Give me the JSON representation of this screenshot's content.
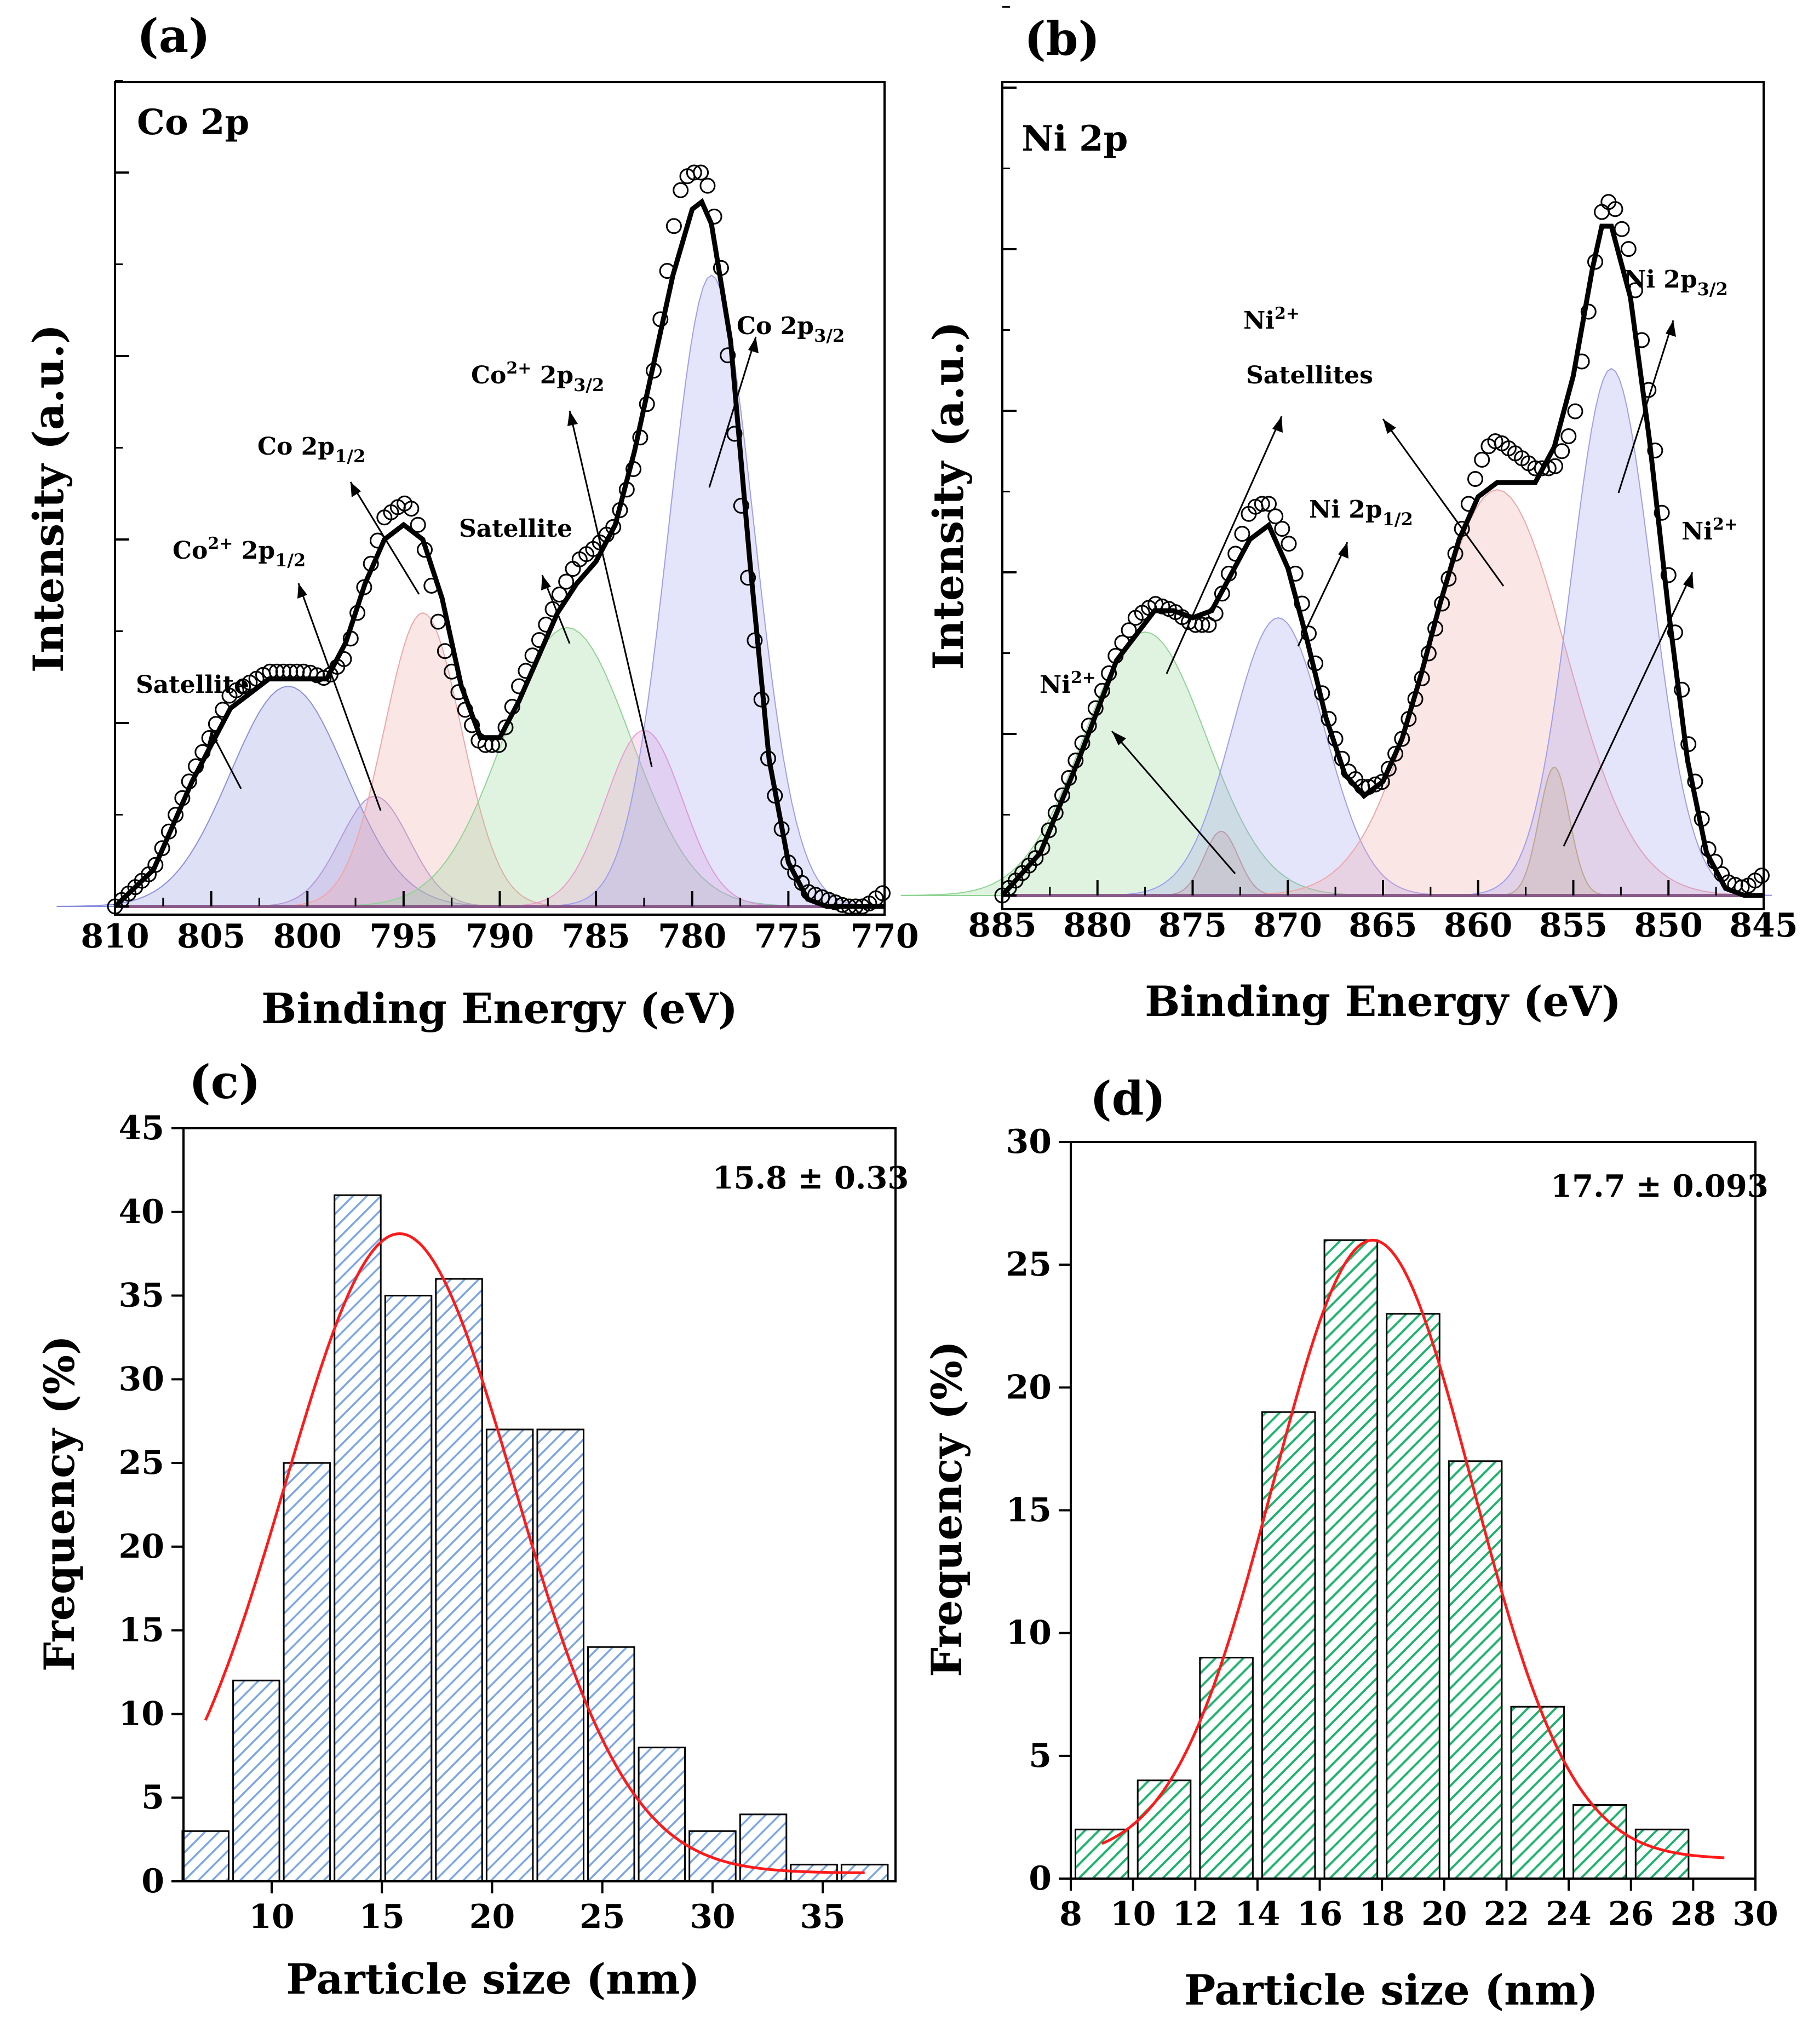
{
  "chart_data": [
    {
      "panel": "(a)",
      "type": "line",
      "title": "Co 2p",
      "xlabel": "Binding Energy (eV)",
      "ylabel": "Intensity (a.u.)",
      "xlim": [
        810,
        770
      ],
      "ylim": [
        0,
        1
      ],
      "xticks": [
        "810",
        "805",
        "800",
        "795",
        "790",
        "785",
        "780",
        "775",
        "770"
      ],
      "series": [
        {
          "name": "Measured",
          "x": [
            810,
            808,
            806,
            804,
            802,
            801,
            800,
            799,
            798,
            797,
            796,
            795.5,
            795,
            794.5,
            794,
            793,
            792,
            791,
            790,
            789,
            788,
            787,
            786,
            785,
            784,
            783,
            782,
            781.5,
            781,
            780.5,
            780,
            779.5,
            779,
            778.5,
            778,
            777,
            776,
            775,
            774,
            773,
            772,
            771,
            770
          ],
          "y": [
            0.0,
            0.05,
            0.18,
            0.29,
            0.32,
            0.32,
            0.32,
            0.31,
            0.34,
            0.44,
            0.53,
            0.54,
            0.55,
            0.54,
            0.5,
            0.36,
            0.28,
            0.22,
            0.22,
            0.3,
            0.36,
            0.42,
            0.47,
            0.49,
            0.52,
            0.6,
            0.73,
            0.83,
            0.92,
            0.99,
            1.0,
            1.0,
            0.97,
            0.87,
            0.7,
            0.42,
            0.19,
            0.06,
            0.02,
            0.01,
            0.0,
            0.0,
            0.02
          ]
        },
        {
          "name": "Fit envelope",
          "x": [
            810,
            808,
            806,
            804,
            802,
            800,
            799,
            798,
            797,
            796,
            795,
            794,
            793,
            792,
            791,
            790,
            789,
            788,
            787,
            786,
            785,
            784,
            783,
            782,
            781,
            780,
            779.5,
            779,
            778,
            777,
            776,
            775,
            774,
            773,
            772,
            770
          ],
          "y": [
            0.0,
            0.05,
            0.17,
            0.27,
            0.31,
            0.31,
            0.31,
            0.36,
            0.44,
            0.5,
            0.52,
            0.5,
            0.42,
            0.3,
            0.23,
            0.23,
            0.28,
            0.34,
            0.4,
            0.44,
            0.47,
            0.52,
            0.62,
            0.74,
            0.86,
            0.95,
            0.96,
            0.93,
            0.77,
            0.47,
            0.2,
            0.06,
            0.01,
            0.0,
            0.0,
            0.0
          ]
        }
      ],
      "peaks": [
        {
          "name": "Satellite",
          "center": 801,
          "height": 0.3,
          "width": 3.0,
          "color": "#8a8fe0"
        },
        {
          "name": "Co2+ 2p1/2",
          "center": 796.5,
          "height": 0.15,
          "width": 1.8,
          "color": "#b49ad8"
        },
        {
          "name": "Co 2p1/2",
          "center": 794,
          "height": 0.4,
          "width": 2.0,
          "color": "#f2a5a5"
        },
        {
          "name": "Satellite",
          "center": 786.5,
          "height": 0.38,
          "width": 3.3,
          "color": "#8fd493"
        },
        {
          "name": "Co2+ 2p3/2",
          "center": 782.5,
          "height": 0.24,
          "width": 2.0,
          "color": "#f29ad2"
        },
        {
          "name": "Co 2p3/2",
          "center": 779,
          "height": 0.86,
          "width": 2.2,
          "color": "#9e9ef2"
        }
      ]
    },
    {
      "panel": "(b)",
      "type": "line",
      "title": "Ni 2p",
      "xlabel": "Binding Energy (eV)",
      "ylabel": "Intensity (a.u.)",
      "xlim": [
        885,
        845
      ],
      "ylim": [
        0,
        1
      ],
      "xticks": [
        "885",
        "880",
        "875",
        "870",
        "865",
        "860",
        "855",
        "850",
        "845"
      ],
      "series": [
        {
          "name": "Measured",
          "x": [
            885,
            883,
            881,
            879,
            878,
            877,
            876,
            875,
            874,
            873,
            872,
            871.5,
            871,
            870,
            869,
            868,
            867,
            866,
            865,
            864,
            863,
            862,
            861,
            860,
            859.5,
            859,
            858,
            857,
            856,
            855,
            854,
            853.5,
            853,
            852,
            851,
            850,
            849,
            848,
            847,
            846,
            845
          ],
          "y": [
            0.0,
            0.06,
            0.2,
            0.34,
            0.39,
            0.41,
            0.4,
            0.38,
            0.38,
            0.46,
            0.54,
            0.55,
            0.55,
            0.5,
            0.38,
            0.26,
            0.18,
            0.15,
            0.16,
            0.22,
            0.3,
            0.4,
            0.5,
            0.6,
            0.63,
            0.64,
            0.62,
            0.6,
            0.6,
            0.66,
            0.86,
            0.96,
            0.98,
            0.9,
            0.7,
            0.45,
            0.22,
            0.07,
            0.02,
            0.01,
            0.03
          ]
        },
        {
          "name": "Fit envelope",
          "x": [
            885,
            883,
            881,
            879,
            877,
            876,
            875,
            874,
            873,
            872,
            871,
            870,
            869,
            868,
            867,
            866,
            865,
            864,
            863,
            862,
            861,
            860,
            859,
            858,
            857,
            856,
            855,
            854,
            853.5,
            853,
            852,
            851,
            850,
            849,
            848,
            847,
            846,
            845
          ],
          "y": [
            0.0,
            0.06,
            0.19,
            0.33,
            0.4,
            0.4,
            0.39,
            0.4,
            0.45,
            0.5,
            0.52,
            0.46,
            0.36,
            0.25,
            0.17,
            0.14,
            0.16,
            0.22,
            0.31,
            0.41,
            0.5,
            0.56,
            0.58,
            0.58,
            0.58,
            0.63,
            0.73,
            0.88,
            0.94,
            0.94,
            0.84,
            0.64,
            0.4,
            0.19,
            0.06,
            0.01,
            0.0,
            0.0
          ]
        }
      ],
      "peaks": [
        {
          "name": "Ni2+ Satellites",
          "center": 877.5,
          "height": 0.37,
          "width": 3.2,
          "color": "#8fd493"
        },
        {
          "name": "Ni2+",
          "center": 873.5,
          "height": 0.09,
          "width": 0.9,
          "color": "#c89a8a"
        },
        {
          "name": "Ni 2p1/2",
          "center": 870.5,
          "height": 0.39,
          "width": 2.4,
          "color": "#9e9ef2"
        },
        {
          "name": "Ni2+ Satellites",
          "center": 859,
          "height": 0.57,
          "width": 3.6,
          "color": "#f2a5a5"
        },
        {
          "name": "Ni2+",
          "center": 856,
          "height": 0.18,
          "width": 0.8,
          "color": "#c8a86a"
        },
        {
          "name": "Ni 2p3/2",
          "center": 853,
          "height": 0.74,
          "width": 2.1,
          "color": "#9e9ef2"
        }
      ]
    },
    {
      "panel": "(c)",
      "type": "bar",
      "xlabel": "Particle size  (nm)",
      "ylabel": "Frequency (%)",
      "annotation": "15.8 ± 0.33",
      "xlim": [
        6,
        38.3
      ],
      "ylim": [
        0,
        45
      ],
      "xticks": [
        "10",
        "15",
        "20",
        "25",
        "30",
        "35"
      ],
      "xtick_values": [
        10,
        15,
        20,
        25,
        30,
        35
      ],
      "yticks": [
        "0",
        "5",
        "10",
        "15",
        "20",
        "25",
        "30",
        "35",
        "40",
        "45"
      ],
      "bar_width": 2.1,
      "categories": [
        7,
        9.3,
        11.6,
        13.9,
        16.2,
        18.5,
        20.8,
        23.1,
        25.4,
        27.7,
        30,
        32.3,
        34.6,
        36.9
      ],
      "values": [
        3,
        12,
        25,
        41,
        35,
        36,
        27,
        27,
        14,
        8,
        3,
        4,
        1,
        1
      ],
      "fit": {
        "type": "gaussian",
        "mean": 15.8,
        "sd": 5.2,
        "peak": 38.2,
        "baseline": 0.5,
        "x_range": [
          7,
          36.9
        ]
      },
      "colors": {
        "bar_fill": "#ffffff",
        "hatch": "#7aa6e6",
        "fit": "#ff1a1a"
      }
    },
    {
      "panel": "(d)",
      "type": "bar",
      "xlabel": "Particle size  (nm)",
      "ylabel": "Frequency (%)",
      "annotation": "17.7 ± 0.093",
      "xlim": [
        8,
        30
      ],
      "ylim": [
        0,
        30
      ],
      "xticks": [
        "8",
        "10",
        "12",
        "14",
        "16",
        "18",
        "20",
        "22",
        "24",
        "26",
        "28",
        "30"
      ],
      "xtick_values": [
        8,
        10,
        12,
        14,
        16,
        18,
        20,
        22,
        24,
        26,
        28,
        30
      ],
      "yticks": [
        "0",
        "5",
        "10",
        "15",
        "20",
        "25",
        "30"
      ],
      "bar_width": 1.7,
      "categories": [
        9,
        11,
        13,
        15,
        17,
        19,
        21,
        23,
        25,
        27
      ],
      "values": [
        2,
        4,
        9,
        19,
        26,
        23,
        17,
        7,
        3,
        2
      ],
      "fit": {
        "type": "gaussian",
        "mean": 17.7,
        "sd": 3.2,
        "peak": 25.2,
        "baseline": 0.8,
        "x_range": [
          9,
          29
        ]
      },
      "colors": {
        "bar_fill": "#ffffff",
        "hatch": "#1eb46e",
        "fit": "#ff1a1a"
      }
    }
  ],
  "labels_a": {
    "sat1": "Satellite",
    "co2_base": "Co",
    "co2_sup": "2+",
    "p12_main": " 2p",
    "p12_sub": "1/2",
    "co_main": "Co 2p",
    "sat2": "Satellite",
    "p32_main": " 2p",
    "p32_sub": "3/2"
  },
  "labels_b": {
    "ni_base": "Ni",
    "ni_sup": "2+",
    "sat_word": "Satellites",
    "ni_main": "Ni 2p",
    "sub12": "1/2",
    "sub32": "3/2"
  }
}
